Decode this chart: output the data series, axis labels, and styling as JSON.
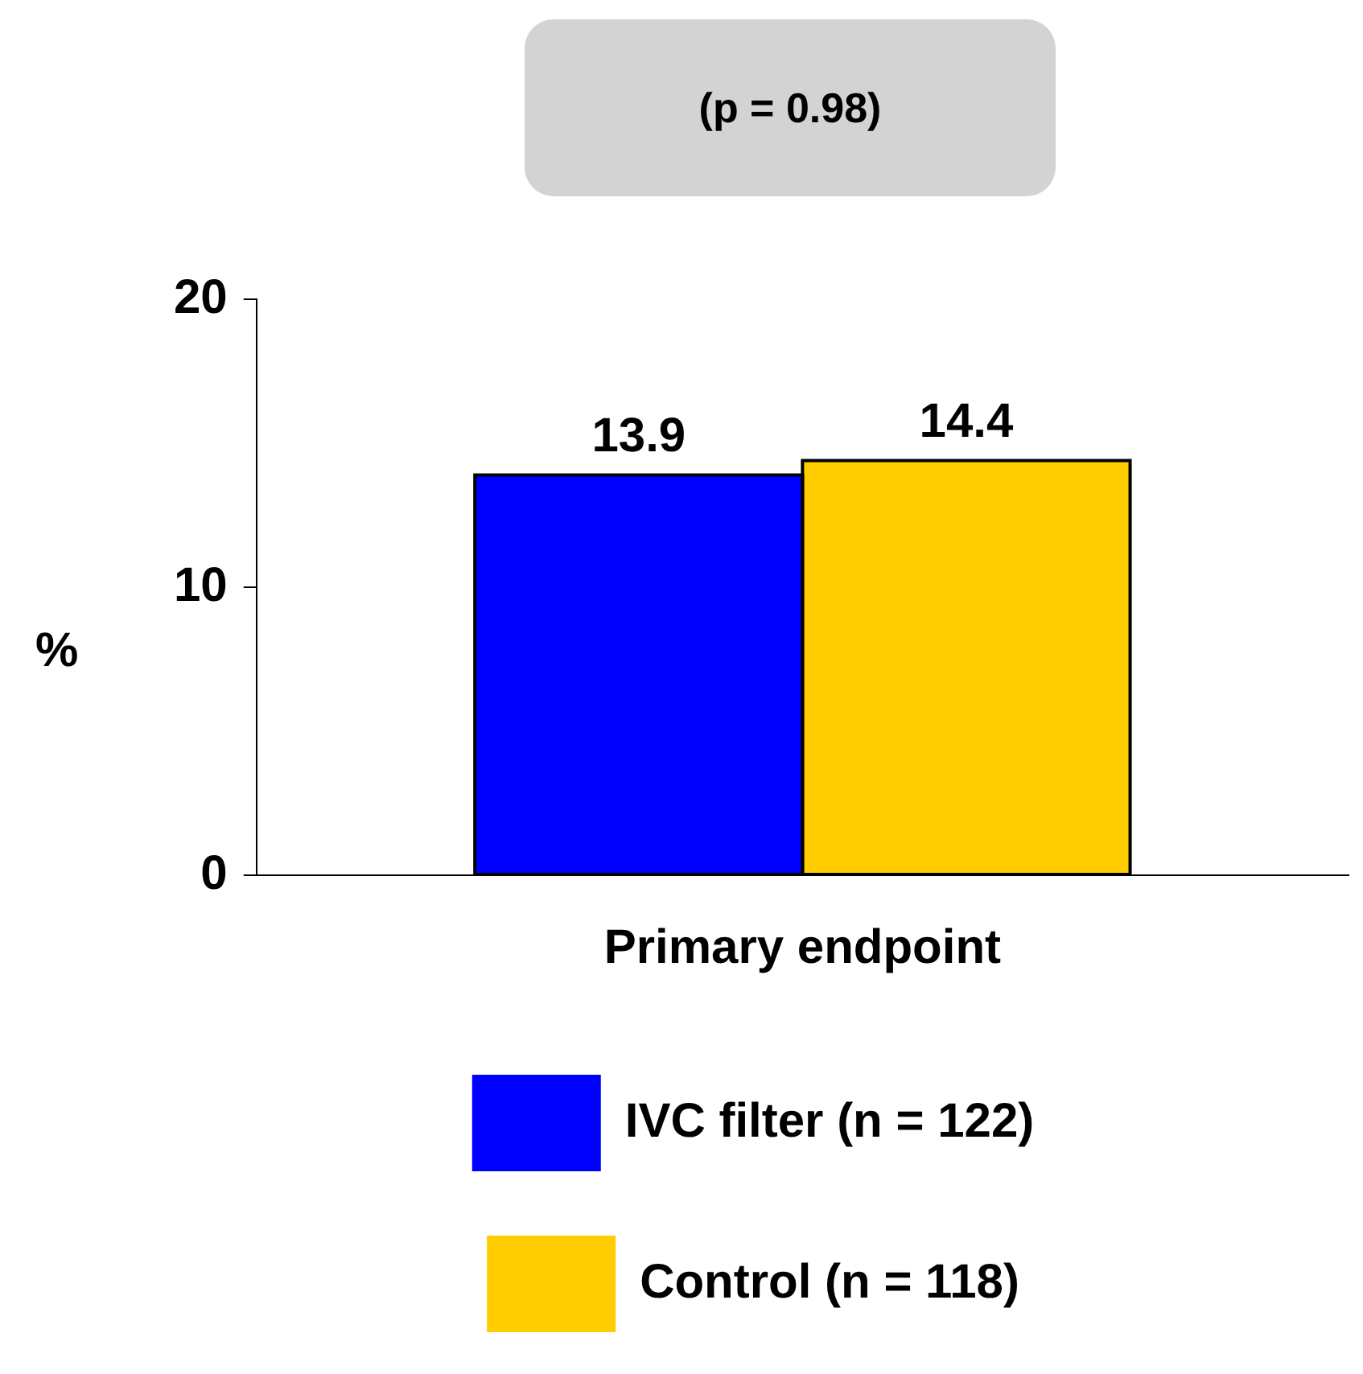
{
  "chart_data": {
    "type": "bar",
    "categories": [
      "Primary endpoint"
    ],
    "ylabel": "%",
    "annotations": [
      "(p = 0.98)"
    ],
    "series": [
      {
        "name": "IVC filter (n = 122)",
        "color": "#0000ff",
        "values": [
          13.9
        ]
      },
      {
        "name": "Control (n = 118)",
        "color": "#ffcc00",
        "values": [
          14.4
        ]
      }
    ],
    "ylim": [
      0,
      20
    ],
    "yticks": [
      0,
      10,
      20
    ],
    "grid": false,
    "legend": "bottom",
    "data_labels": true
  }
}
